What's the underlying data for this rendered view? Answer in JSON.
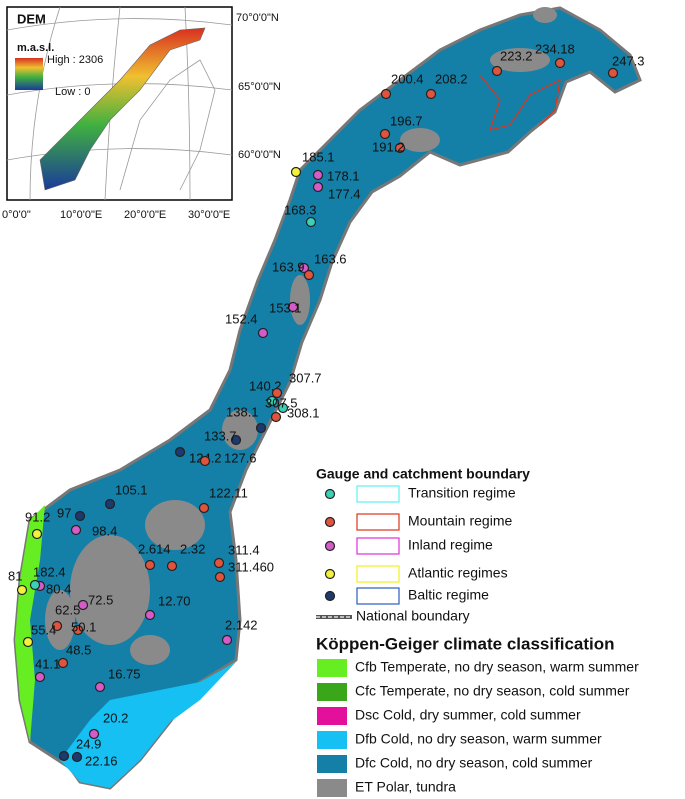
{
  "inset": {
    "title": "DEM",
    "unit": "m.a.s.l.",
    "high": "High : 2306",
    "low": "Low : 0",
    "lat_labels": [
      "70°0'0\"N",
      "65°0'0\"N",
      "60°0'0\"N"
    ],
    "lon_labels": [
      "0°0'0\"",
      "10°0'0\"E",
      "20°0'0\"E",
      "30°0'0\"E"
    ]
  },
  "gauges": [
    {
      "label": "247.3",
      "color": "#e0533c"
    },
    {
      "label": "234.18",
      "color": "#e0533c"
    },
    {
      "label": "223.2",
      "color": "#e0533c"
    },
    {
      "label": "208.2",
      "color": "#e0533c"
    },
    {
      "label": "200.4",
      "color": "#e0533c"
    },
    {
      "label": "196.7",
      "color": "#e0533c"
    },
    {
      "label": "191.2",
      "color": "#e0533c"
    },
    {
      "label": "185.1",
      "color": "#f2f23c"
    },
    {
      "label": "178.1",
      "color": "#d45bc8"
    },
    {
      "label": "177.4",
      "color": "#d45bc8"
    },
    {
      "label": "168.3",
      "color": "#3ad1b6"
    },
    {
      "label": "163.9",
      "color": "#d45bc8"
    },
    {
      "label": "163.6",
      "color": "#e0533c"
    },
    {
      "label": "152.4",
      "color": "#d45bc8"
    },
    {
      "label": "153.1",
      "color": "#d45bc8"
    },
    {
      "label": "140.2",
      "color": "#3ad1b6"
    },
    {
      "label": "307.7",
      "color": "#e0533c"
    },
    {
      "label": "307.5",
      "color": "#3ad1b6"
    },
    {
      "label": "308.1",
      "color": "#e0533c"
    },
    {
      "label": "138.1",
      "color": "#1c3a6e"
    },
    {
      "label": "133.7",
      "color": "#1c3a6e"
    },
    {
      "label": "124.2",
      "color": "#1c3a6e"
    },
    {
      "label": "127.6",
      "color": "#e0533c"
    },
    {
      "label": "105.1",
      "color": "#1c3a6e"
    },
    {
      "label": "122.11",
      "color": "#e0533c"
    },
    {
      "label": "97",
      "color": "#1c3a6e"
    },
    {
      "label": "91.2",
      "color": "#f2f23c"
    },
    {
      "label": "98.4",
      "color": "#d45bc8"
    },
    {
      "label": "2.614",
      "color": "#e0533c"
    },
    {
      "label": "2.32",
      "color": "#e0533c"
    },
    {
      "label": "311.4",
      "color": "#e0533c"
    },
    {
      "label": "311.460",
      "color": "#e0533c"
    },
    {
      "label": "182.4",
      "color": "#d45bc8"
    },
    {
      "label": "81",
      "color": "#f2f23c"
    },
    {
      "label": "80.4",
      "color": "#3ad1b6"
    },
    {
      "label": "72.5",
      "color": "#d45bc8"
    },
    {
      "label": "12.70",
      "color": "#d45bc8"
    },
    {
      "label": "62.5",
      "color": "#e0533c"
    },
    {
      "label": "50.1",
      "color": "#e0533c"
    },
    {
      "label": "55.4",
      "color": "#f2f23c"
    },
    {
      "label": "48.5",
      "color": "#e0533c"
    },
    {
      "label": "2.142",
      "color": "#d45bc8"
    },
    {
      "label": "41.1",
      "color": "#d45bc8"
    },
    {
      "label": "16.75",
      "color": "#d45bc8"
    },
    {
      "label": "20.2",
      "color": "#d45bc8"
    },
    {
      "label": "24.9",
      "color": "#1c3a6e"
    },
    {
      "label": "22.16",
      "color": "#1c3a6e"
    }
  ],
  "legend": {
    "gauge_title": "Gauge and catchment boundary",
    "regimes": [
      {
        "label": "Transition regime",
        "dot_color": "#3ad1b6",
        "box_color": "#5ff0f0"
      },
      {
        "label": "Mountain regime",
        "dot_color": "#e0533c",
        "box_color": "#e0331c"
      },
      {
        "label": "Inland regime",
        "dot_color": "#d45bc8",
        "box_color": "#e030d8"
      },
      {
        "label": "Atlantic regimes",
        "dot_color": "#f2f23c",
        "box_color": "#f0f020"
      },
      {
        "label": "Baltic regime",
        "dot_color": "#1c3a6e",
        "box_color": "#2a5cc0"
      }
    ],
    "national_boundary": "National boundary",
    "climate_title": "Köppen-Geiger climate classification",
    "classes": [
      {
        "label": "Cfb Temperate, no dry season, warm summer",
        "color": "#66ee22"
      },
      {
        "label": "Cfc Temperate, no dry season, cold summer",
        "color": "#3aa61a"
      },
      {
        "label": "Dsc Cold, dry summer, cold summer",
        "color": "#e2109a"
      },
      {
        "label": "Dfb Cold, no dry season, warm summer",
        "color": "#16c0f2"
      },
      {
        "label": "Dfc Cold, no dry season, cold summer",
        "color": "#1480a8"
      },
      {
        "label": "ET Polar, tundra",
        "color": "#8a8a8a"
      }
    ]
  }
}
